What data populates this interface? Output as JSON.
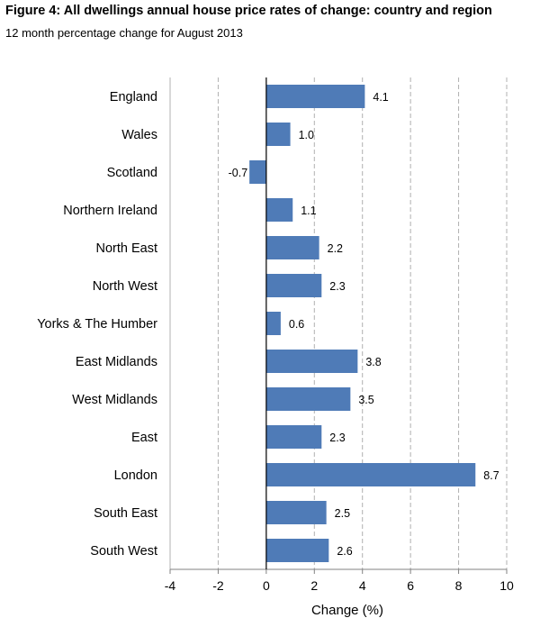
{
  "header": {
    "title": "Figure 4: All dwellings annual house price rates of change: country and region",
    "subtitle": "12 month percentage change for August 2013"
  },
  "chart_data": {
    "type": "bar",
    "orientation": "horizontal",
    "title": "Figure 4: All dwellings annual house price rates of change: country and region",
    "subtitle": "12 month percentage change for August 2013",
    "xlabel": "Change (%)",
    "ylabel": "",
    "xlim": [
      -4,
      10
    ],
    "xticks": [
      -4,
      -2,
      0,
      2,
      4,
      6,
      8,
      10
    ],
    "grid": "vertical",
    "categories": [
      "England",
      "Wales",
      "Scotland",
      "Northern Ireland",
      "North East",
      "North West",
      "Yorks & The Humber",
      "East Midlands",
      "West Midlands",
      "East",
      "London",
      "South East",
      "South West"
    ],
    "values": [
      4.1,
      1.0,
      -0.7,
      1.1,
      2.2,
      2.3,
      0.6,
      3.8,
      3.5,
      2.3,
      8.7,
      2.5,
      2.6
    ],
    "value_labels": [
      "4.1",
      "1.0",
      "-0.7",
      "1.1",
      "2.2",
      "2.3",
      "0.6",
      "3.8",
      "3.5",
      "2.3",
      "8.7",
      "2.5",
      "2.6"
    ],
    "colors": {
      "bar": "#4f7bb7",
      "grid": "#b0b0b0",
      "axis": "#000000"
    }
  }
}
